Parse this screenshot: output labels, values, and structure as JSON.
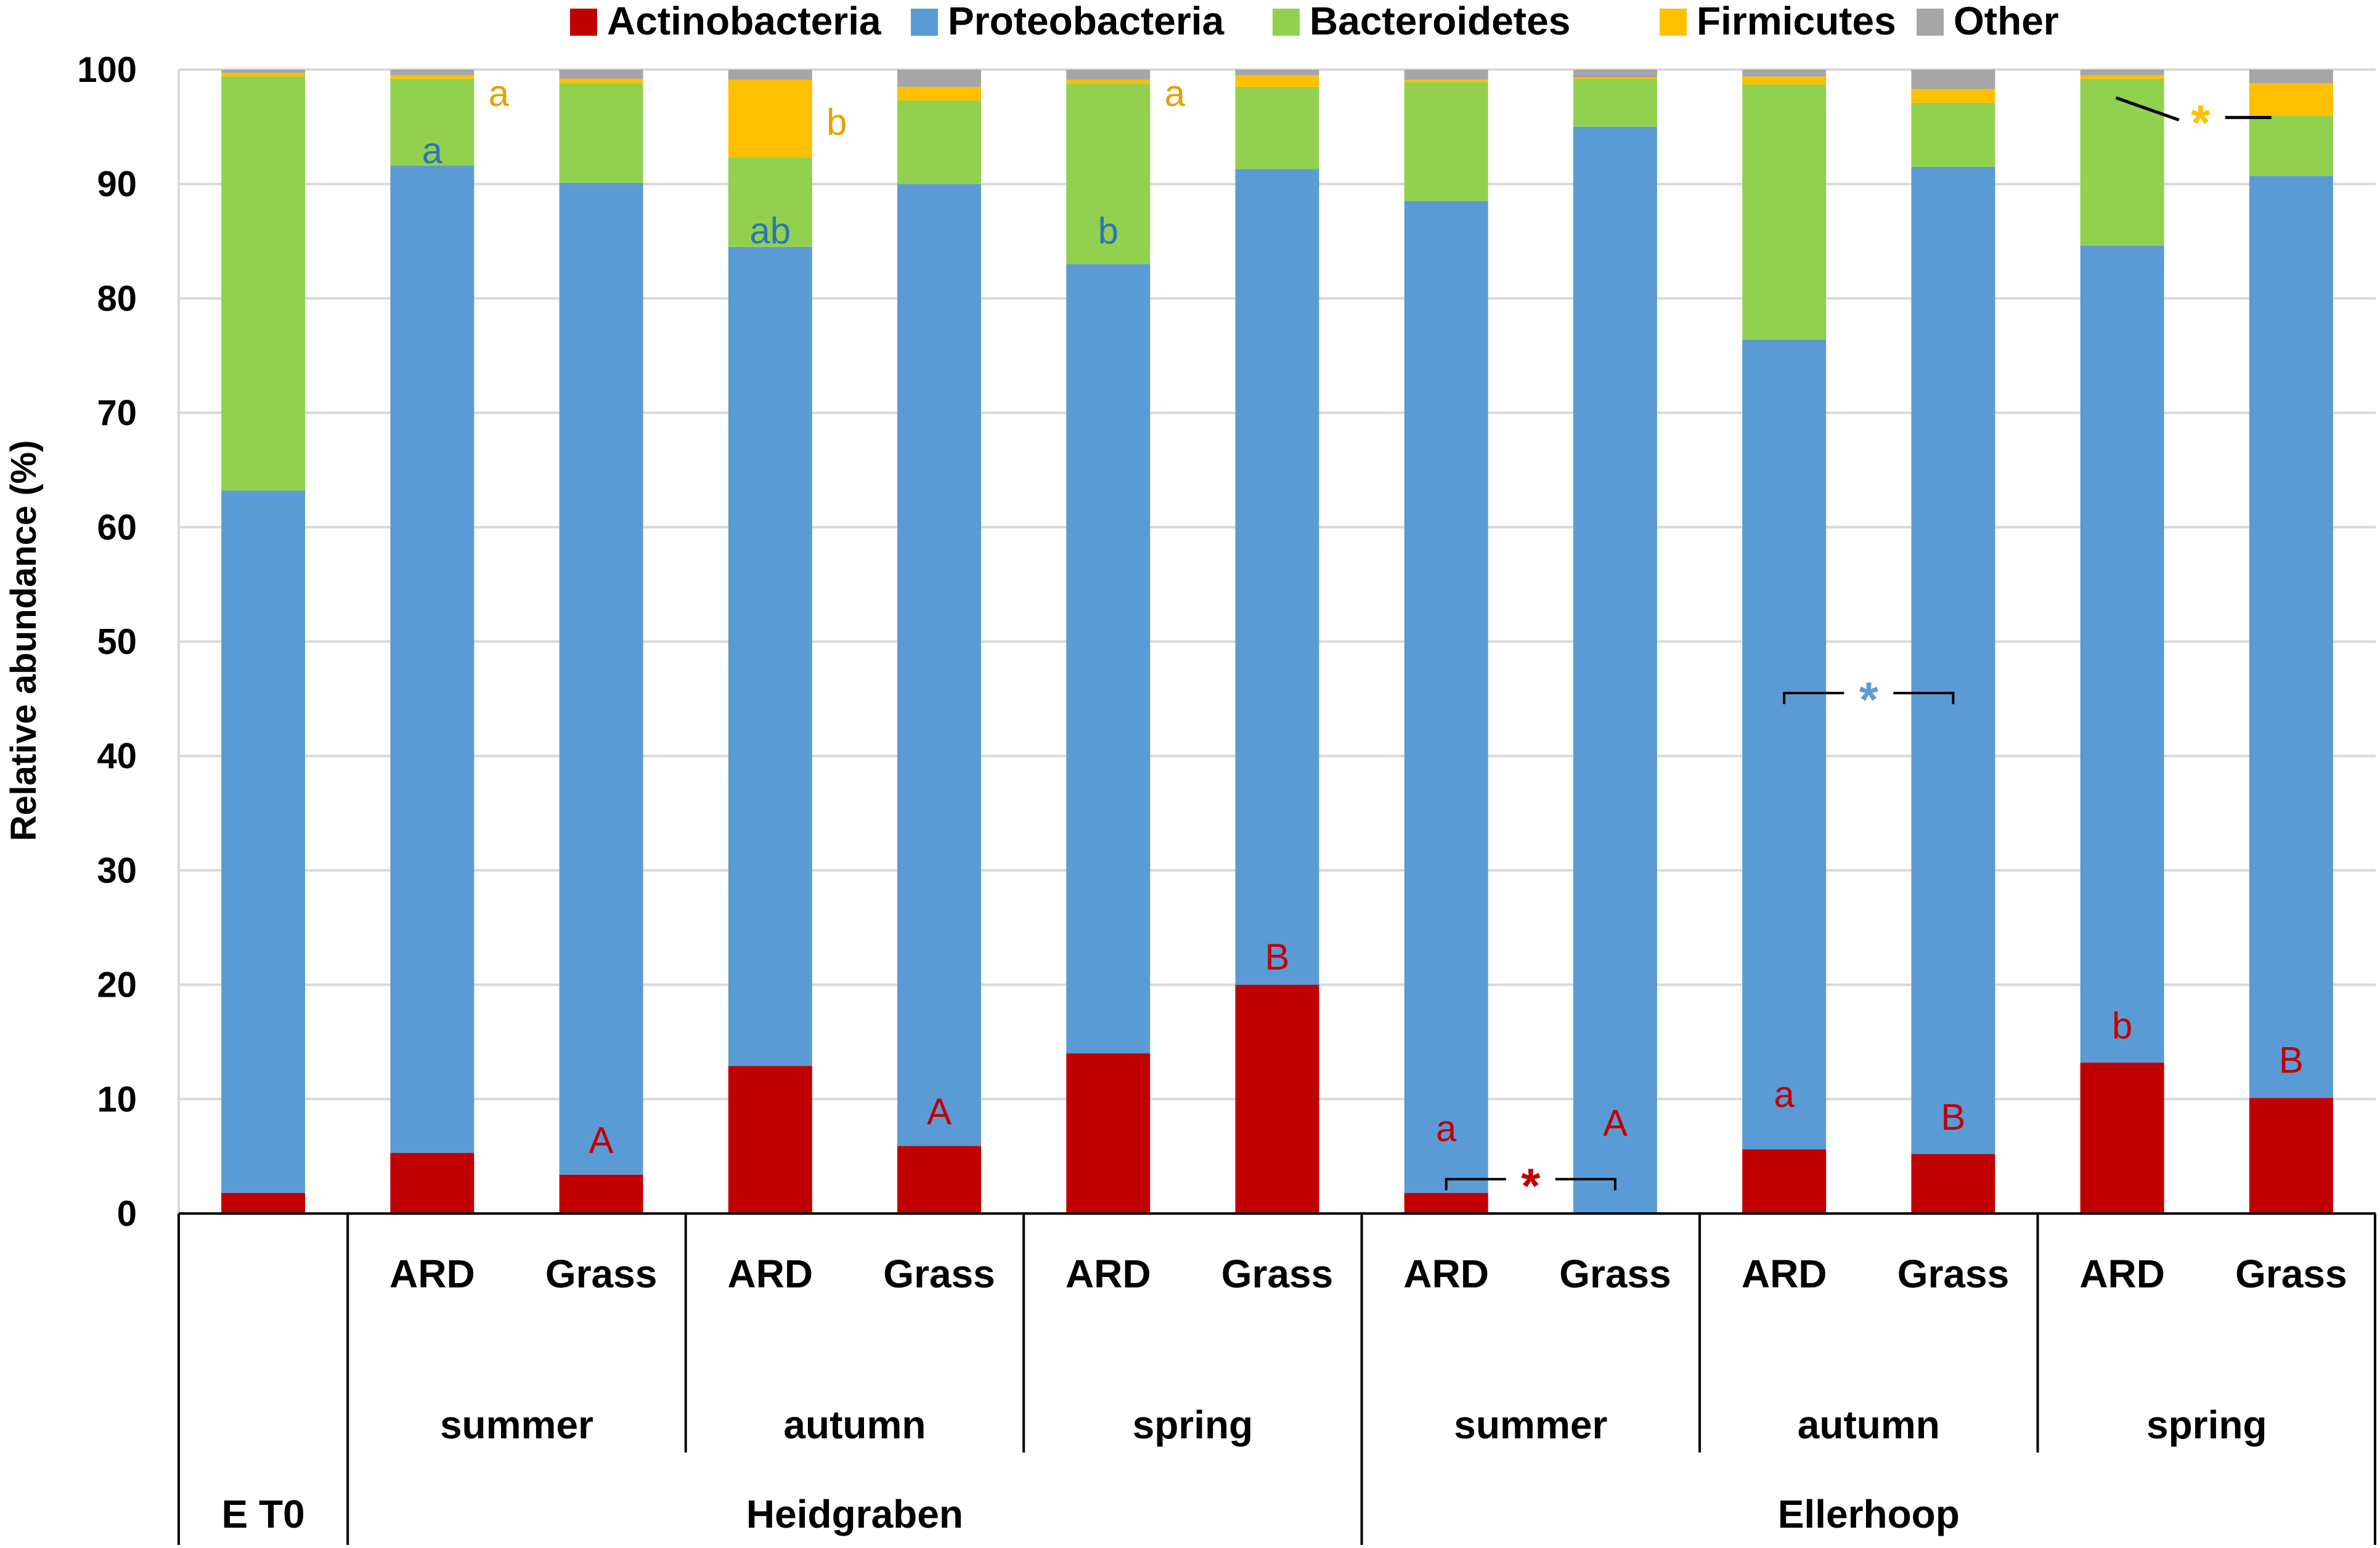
{
  "chart_data": {
    "type": "bar",
    "stacked": true,
    "ylabel": "Relative abundance (%)",
    "ylim": [
      0,
      100
    ],
    "yticks": [
      0,
      10,
      20,
      30,
      40,
      50,
      60,
      70,
      80,
      90,
      100
    ],
    "grid": true,
    "legend": {
      "placement": "top",
      "entries": [
        {
          "name": "Actinobacteria",
          "color": "#C00000"
        },
        {
          "name": "Proteobacteria",
          "color": "#5B9BD5"
        },
        {
          "name": "Bacteroidetes",
          "color": "#92D050"
        },
        {
          "name": "Firmicutes",
          "color": "#FFC000"
        },
        {
          "name": "Other",
          "color": "#A6A6A6"
        }
      ]
    },
    "bars": [
      {
        "label": "",
        "season": "",
        "site": "E T0",
        "values": [
          1.8,
          61.4,
          36.2,
          0.3,
          0.3
        ]
      },
      {
        "label": "ARD",
        "season": "summer",
        "site": "Heidgraben",
        "values": [
          5.3,
          86.3,
          7.6,
          0.3,
          0.5
        ]
      },
      {
        "label": "Grass",
        "season": "summer",
        "site": "Heidgraben",
        "values": [
          3.4,
          86.7,
          8.7,
          0.4,
          0.8
        ]
      },
      {
        "label": "ARD",
        "season": "autumn",
        "site": "Heidgraben",
        "values": [
          12.9,
          71.6,
          7.8,
          6.8,
          0.9
        ]
      },
      {
        "label": "Grass",
        "season": "autumn",
        "site": "Heidgraben",
        "values": [
          5.9,
          84.1,
          7.3,
          1.2,
          1.5
        ]
      },
      {
        "label": "ARD",
        "season": "spring",
        "site": "Heidgraben",
        "values": [
          14.0,
          69.0,
          15.8,
          0.3,
          0.9
        ]
      },
      {
        "label": "Grass",
        "season": "spring",
        "site": "Heidgraben",
        "values": [
          20.0,
          71.3,
          7.2,
          1.0,
          0.5
        ]
      },
      {
        "label": "ARD",
        "season": "summer",
        "site": "Ellerhoop",
        "values": [
          1.8,
          86.7,
          10.4,
          0.2,
          0.9
        ]
      },
      {
        "label": "Grass",
        "season": "summer",
        "site": "Ellerhoop",
        "values": [
          0.0,
          95.0,
          4.2,
          0.1,
          0.7
        ]
      },
      {
        "label": "ARD",
        "season": "autumn",
        "site": "Ellerhoop",
        "values": [
          5.6,
          70.8,
          22.3,
          0.7,
          0.6
        ]
      },
      {
        "label": "Grass",
        "season": "autumn",
        "site": "Ellerhoop",
        "values": [
          5.2,
          86.3,
          5.6,
          1.2,
          1.7
        ]
      },
      {
        "label": "ARD",
        "season": "spring",
        "site": "Ellerhoop",
        "values": [
          13.2,
          71.4,
          14.6,
          0.3,
          0.5
        ]
      },
      {
        "label": "Grass",
        "season": "spring",
        "site": "Ellerhoop",
        "values": [
          10.1,
          80.6,
          5.3,
          2.8,
          1.2
        ]
      }
    ],
    "season_groups": [
      {
        "name": "summer",
        "from": 1,
        "to": 2
      },
      {
        "name": "autumn",
        "from": 3,
        "to": 4
      },
      {
        "name": "spring",
        "from": 5,
        "to": 6
      },
      {
        "name": "summer",
        "from": 7,
        "to": 8
      },
      {
        "name": "autumn",
        "from": 9,
        "to": 10
      },
      {
        "name": "spring",
        "from": 11,
        "to": 12
      }
    ],
    "site_groups": [
      {
        "name": "E T0",
        "from": 0,
        "to": 0
      },
      {
        "name": "Heidgraben",
        "from": 1,
        "to": 6
      },
      {
        "name": "Ellerhoop",
        "from": 7,
        "to": 12
      }
    ],
    "annotations": [
      {
        "text": "a",
        "bar": 1,
        "y": 98.0,
        "side": "right",
        "color": "#E7A100"
      },
      {
        "text": "a",
        "bar": 1,
        "y": 93.0,
        "side": "center",
        "color": "#2E75B6"
      },
      {
        "text": "A",
        "bar": 2,
        "y": 6.5,
        "side": "center",
        "color": "#C00000"
      },
      {
        "text": "b",
        "bar": 3,
        "y": 95.5,
        "side": "right",
        "color": "#E7A100"
      },
      {
        "text": "ab",
        "bar": 3,
        "y": 86.0,
        "side": "center",
        "color": "#2E75B6"
      },
      {
        "text": "A",
        "bar": 4,
        "y": 9.0,
        "side": "center",
        "color": "#C00000"
      },
      {
        "text": "a",
        "bar": 5,
        "y": 98.0,
        "side": "right",
        "color": "#E7A100"
      },
      {
        "text": "b",
        "bar": 5,
        "y": 86.0,
        "side": "center",
        "color": "#2E75B6"
      },
      {
        "text": "B",
        "bar": 6,
        "y": 22.5,
        "side": "center",
        "color": "#C00000"
      },
      {
        "text": "a",
        "bar": 7,
        "y": 7.5,
        "side": "center",
        "color": "#C00000"
      },
      {
        "text": "A",
        "bar": 8,
        "y": 8.0,
        "side": "center",
        "color": "#C00000"
      },
      {
        "text": "a",
        "bar": 9,
        "y": 10.5,
        "side": "center",
        "color": "#C00000"
      },
      {
        "text": "B",
        "bar": 10,
        "y": 8.5,
        "side": "center",
        "color": "#C00000"
      },
      {
        "text": "b",
        "bar": 11,
        "y": 16.5,
        "side": "center",
        "color": "#C00000"
      },
      {
        "text": "B",
        "bar": 12,
        "y": 13.5,
        "side": "center",
        "color": "#C00000"
      }
    ],
    "significance": [
      {
        "text": "*",
        "from": 7,
        "to": 8,
        "y": 3.0,
        "color": "#C00000",
        "style": "bracket-up"
      },
      {
        "text": "*",
        "from": 9,
        "to": 10,
        "y": 45.5,
        "color": "#5B9BD5",
        "style": "bracket-down"
      },
      {
        "text": "*",
        "from": 11,
        "to": 12,
        "y": 97.0,
        "color": "#FFC000",
        "style": "leader"
      }
    ]
  }
}
